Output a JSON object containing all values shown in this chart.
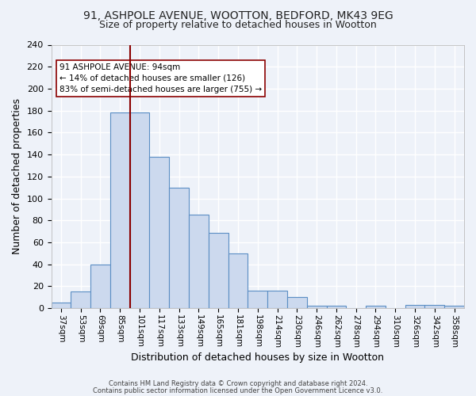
{
  "title1": "91, ASHPOLE AVENUE, WOOTTON, BEDFORD, MK43 9EG",
  "title2": "Size of property relative to detached houses in Wootton",
  "xlabel": "Distribution of detached houses by size in Wootton",
  "ylabel": "Number of detached properties",
  "categories": [
    "37sqm",
    "53sqm",
    "69sqm",
    "85sqm",
    "101sqm",
    "117sqm",
    "133sqm",
    "149sqm",
    "165sqm",
    "181sqm",
    "198sqm",
    "214sqm",
    "230sqm",
    "246sqm",
    "262sqm",
    "278sqm",
    "294sqm",
    "310sqm",
    "326sqm",
    "342sqm",
    "358sqm"
  ],
  "bar_heights": [
    5,
    15,
    40,
    178,
    178,
    138,
    110,
    85,
    69,
    50,
    16,
    16,
    10,
    2,
    2,
    0,
    2,
    0,
    3,
    3,
    2
  ],
  "bar_color": "#ccd9ee",
  "bar_edge_color": "#5b8ec4",
  "vline_x": 3.5,
  "vline_color": "#8b0000",
  "annotation_text": "91 ASHPOLE AVENUE: 94sqm\n← 14% of detached houses are smaller (126)\n83% of semi-detached houses are larger (755) →",
  "annotation_box_color": "white",
  "annotation_box_edge_color": "#8b0000",
  "ylim": [
    0,
    240
  ],
  "yticks": [
    0,
    20,
    40,
    60,
    80,
    100,
    120,
    140,
    160,
    180,
    200,
    220,
    240
  ],
  "footnote1": "Contains HM Land Registry data © Crown copyright and database right 2024.",
  "footnote2": "Contains public sector information licensed under the Open Government Licence v3.0.",
  "bg_color": "#eef2f9",
  "grid_color": "white",
  "title1_fontsize": 10,
  "title2_fontsize": 9
}
